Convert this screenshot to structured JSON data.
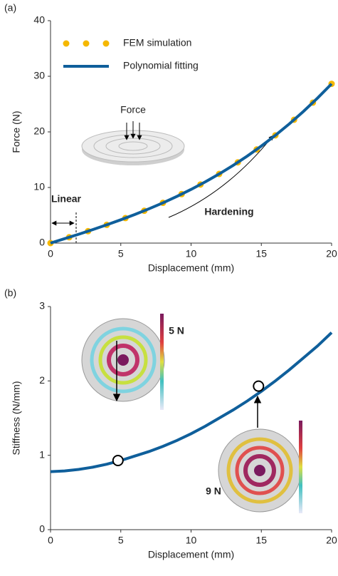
{
  "chart_data": [
    {
      "type": "line",
      "panel_label": "(a)",
      "xlabel": "Displacement (mm)",
      "ylabel": "Force (N)",
      "xlim": [
        0,
        20
      ],
      "ylim": [
        0,
        40
      ],
      "xticks": [
        0,
        5,
        10,
        15,
        20
      ],
      "yticks": [
        0,
        10,
        20,
        30,
        40
      ],
      "legend": "upper left",
      "series": [
        {
          "name": "FEM simulation",
          "color": "#f5b800",
          "style": "markers",
          "x": [
            0,
            1.33,
            2.67,
            4,
            5.33,
            6.67,
            8,
            9.33,
            10.67,
            12,
            13.33,
            14.67,
            16,
            17.33,
            18.67,
            20
          ],
          "values": [
            0,
            1.05,
            2.14,
            3.28,
            4.5,
            5.81,
            7.24,
            8.81,
            10.53,
            12.43,
            14.52,
            16.84,
            19.38,
            22.18,
            25.26,
            28.64
          ]
        },
        {
          "name": "Polynomial fitting",
          "color": "#0f5f9b",
          "style": "line",
          "x": [
            0,
            1,
            2,
            3,
            4,
            5,
            6,
            7,
            8,
            9,
            10,
            11,
            12,
            13,
            14,
            15,
            16,
            17,
            18,
            19,
            20
          ],
          "values": [
            0,
            0.79,
            1.59,
            2.42,
            3.28,
            4.19,
            5.14,
            6.16,
            7.24,
            8.4,
            9.65,
            10.99,
            12.43,
            13.98,
            15.65,
            17.45,
            19.38,
            21.46,
            23.69,
            26.08,
            28.64
          ]
        }
      ],
      "annotations": [
        "Force",
        "Linear",
        "Hardening"
      ]
    },
    {
      "type": "line",
      "panel_label": "(b)",
      "xlabel": "Displacement (mm)",
      "ylabel": "Stiffness (N/mm)",
      "xlim": [
        0,
        20
      ],
      "ylim": [
        0,
        3
      ],
      "xticks": [
        0,
        5,
        10,
        15,
        20
      ],
      "yticks": [
        0,
        1,
        2,
        3
      ],
      "series": [
        {
          "color": "#0f5f9b",
          "style": "line",
          "x": [
            0,
            1,
            2,
            3,
            4,
            5,
            6,
            7,
            8,
            9,
            10,
            11,
            12,
            13,
            14,
            15,
            16,
            17,
            18,
            19,
            20
          ],
          "values": [
            0.78,
            0.79,
            0.81,
            0.84,
            0.88,
            0.93,
            0.99,
            1.05,
            1.12,
            1.2,
            1.29,
            1.39,
            1.5,
            1.61,
            1.73,
            1.86,
            2,
            2.15,
            2.31,
            2.47,
            2.65
          ]
        },
        {
          "color": "#000000",
          "style": "open-markers",
          "x": [
            4.8,
            14.8
          ],
          "values": [
            0.93,
            1.93
          ]
        }
      ],
      "annotations": [
        "5 N",
        "9 N"
      ]
    }
  ]
}
